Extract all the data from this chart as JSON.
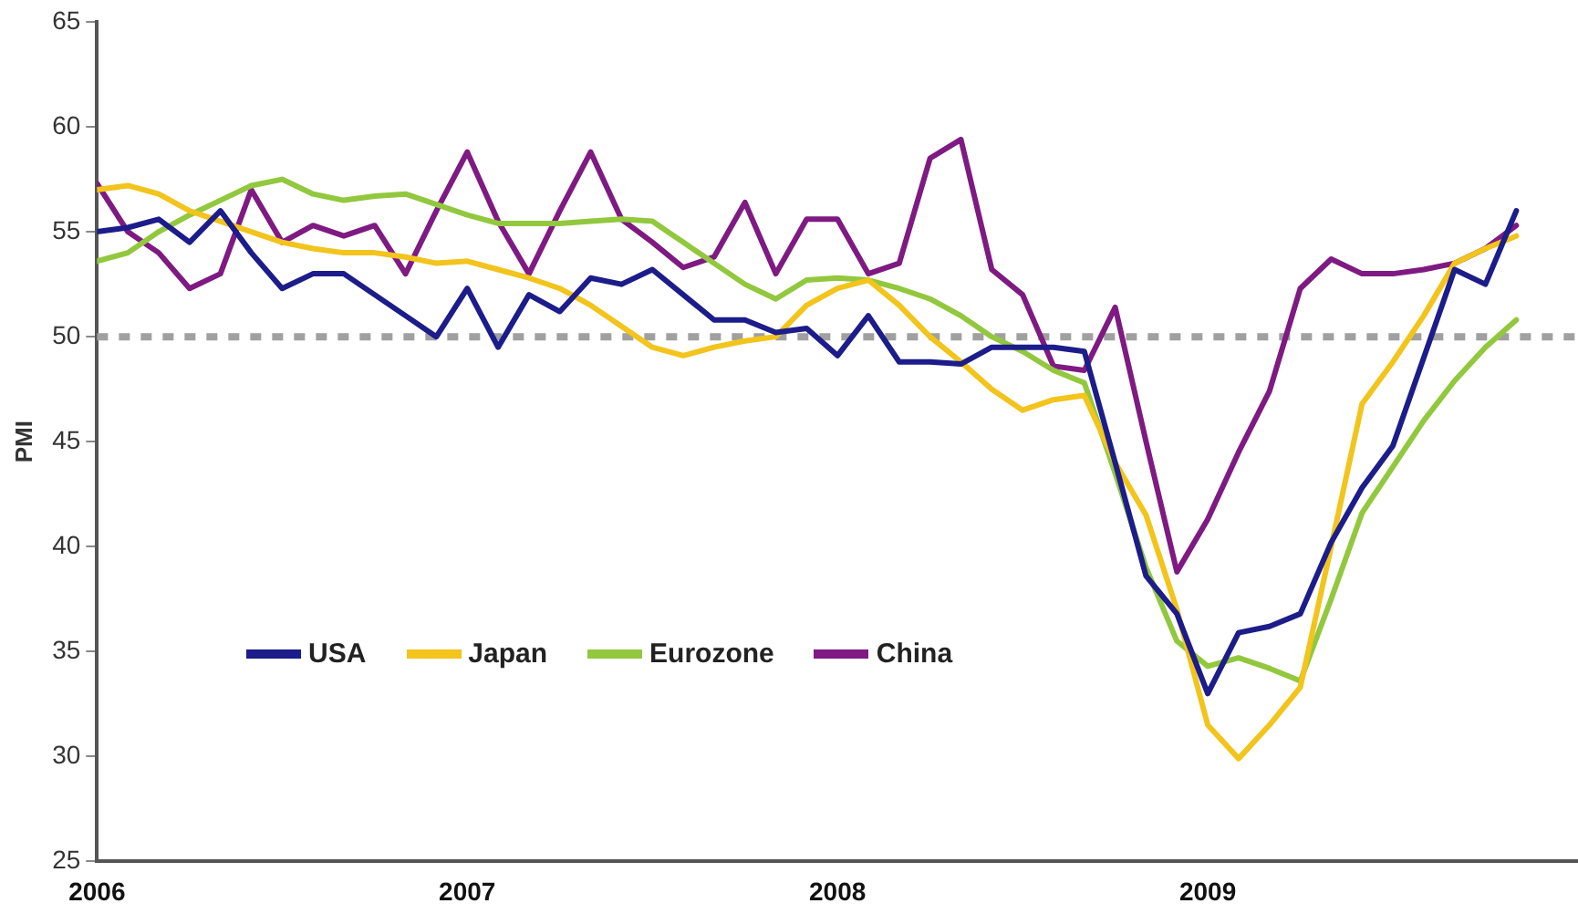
{
  "chart_data": {
    "type": "line",
    "ylabel": "PMI",
    "x": [
      "2006-01",
      "2006-02",
      "2006-03",
      "2006-04",
      "2006-05",
      "2006-06",
      "2006-07",
      "2006-08",
      "2006-09",
      "2006-10",
      "2006-11",
      "2006-12",
      "2007-01",
      "2007-02",
      "2007-03",
      "2007-04",
      "2007-05",
      "2007-06",
      "2007-07",
      "2007-08",
      "2007-09",
      "2007-10",
      "2007-11",
      "2007-12",
      "2008-01",
      "2008-02",
      "2008-03",
      "2008-04",
      "2008-05",
      "2008-06",
      "2008-07",
      "2008-08",
      "2008-09",
      "2008-10",
      "2008-11",
      "2008-12",
      "2009-01",
      "2009-02",
      "2009-03",
      "2009-04",
      "2009-05",
      "2009-06",
      "2009-07",
      "2009-08",
      "2009-09",
      "2009-10",
      "2009-11"
    ],
    "xlim": [
      "2006-01",
      "2010-01"
    ],
    "xticks": [
      "2006",
      "2007",
      "2008",
      "2009"
    ],
    "ylim": [
      25,
      65
    ],
    "yticks": [
      25,
      30,
      35,
      40,
      45,
      50,
      55,
      60,
      65
    ],
    "grid": false,
    "legend": "bottom left",
    "marker": "none",
    "line_style": "solid",
    "ref_lines": [
      {
        "axis": "y",
        "value": 50,
        "color": "#a0a0a0",
        "line_style": "dashed"
      }
    ],
    "series": [
      {
        "name": "USA",
        "color": "#1c1c8a",
        "values": [
          55,
          55.2,
          55.6,
          54.5,
          56,
          54,
          52.3,
          53,
          53,
          52,
          51,
          50,
          52.3,
          49.5,
          52,
          51.2,
          52.8,
          52.5,
          53.2,
          52,
          50.8,
          50.8,
          50.2,
          50.4,
          49.1,
          51,
          48.8,
          48.8,
          48.7,
          49.5,
          49.5,
          49.5,
          49.3,
          44,
          38.6,
          36.8,
          33,
          35.9,
          36.2,
          36.8,
          40.2,
          42.8,
          44.8,
          49,
          53.2,
          52.5,
          56
        ]
      },
      {
        "name": "Japan",
        "color": "#f2c41c",
        "values": [
          57,
          57.2,
          56.8,
          56,
          55.5,
          55,
          54.5,
          54.2,
          54,
          54,
          53.8,
          53.5,
          53.6,
          53.2,
          52.8,
          52.3,
          51.5,
          50.5,
          49.5,
          49.1,
          49.5,
          49.8,
          50,
          51.5,
          52.3,
          52.7,
          51.5,
          50,
          48.8,
          47.5,
          46.5,
          47,
          47.2,
          44,
          41.5,
          37,
          31.5,
          29.9,
          31.5,
          33.3,
          40,
          46.8,
          48.8,
          51,
          53.5,
          54.2,
          54.8
        ]
      },
      {
        "name": "Eurozone",
        "color": "#92c83e",
        "values": [
          53.6,
          54,
          55,
          55.8,
          56.5,
          57.2,
          57.5,
          56.8,
          56.5,
          56.7,
          56.8,
          56.3,
          55.8,
          55.4,
          55.4,
          55.4,
          55.5,
          55.6,
          55.5,
          54.5,
          53.5,
          52.5,
          51.8,
          52.7,
          52.8,
          52.7,
          52.3,
          51.8,
          51,
          50,
          49.3,
          48.4,
          47.8,
          43.5,
          39,
          35.5,
          34.3,
          34.7,
          34.2,
          33.6,
          37.5,
          41.6,
          43.8,
          46,
          47.9,
          49.5,
          50.8
        ]
      },
      {
        "name": "China",
        "color": "#7e1a82",
        "values": [
          57.3,
          55,
          54,
          52.3,
          53,
          57,
          54.5,
          55.3,
          54.8,
          55.3,
          53,
          56,
          58.8,
          55.5,
          53,
          56,
          58.8,
          55.6,
          54.5,
          53.3,
          53.8,
          56.4,
          53,
          55.6,
          55.6,
          53,
          53.5,
          58.5,
          59.4,
          53.2,
          52,
          48.6,
          48.4,
          51.4,
          45,
          38.8,
          41.3,
          44.5,
          47.4,
          52.3,
          53.7,
          53,
          53,
          53.2,
          53.5,
          54.2,
          55.3
        ]
      }
    ]
  }
}
